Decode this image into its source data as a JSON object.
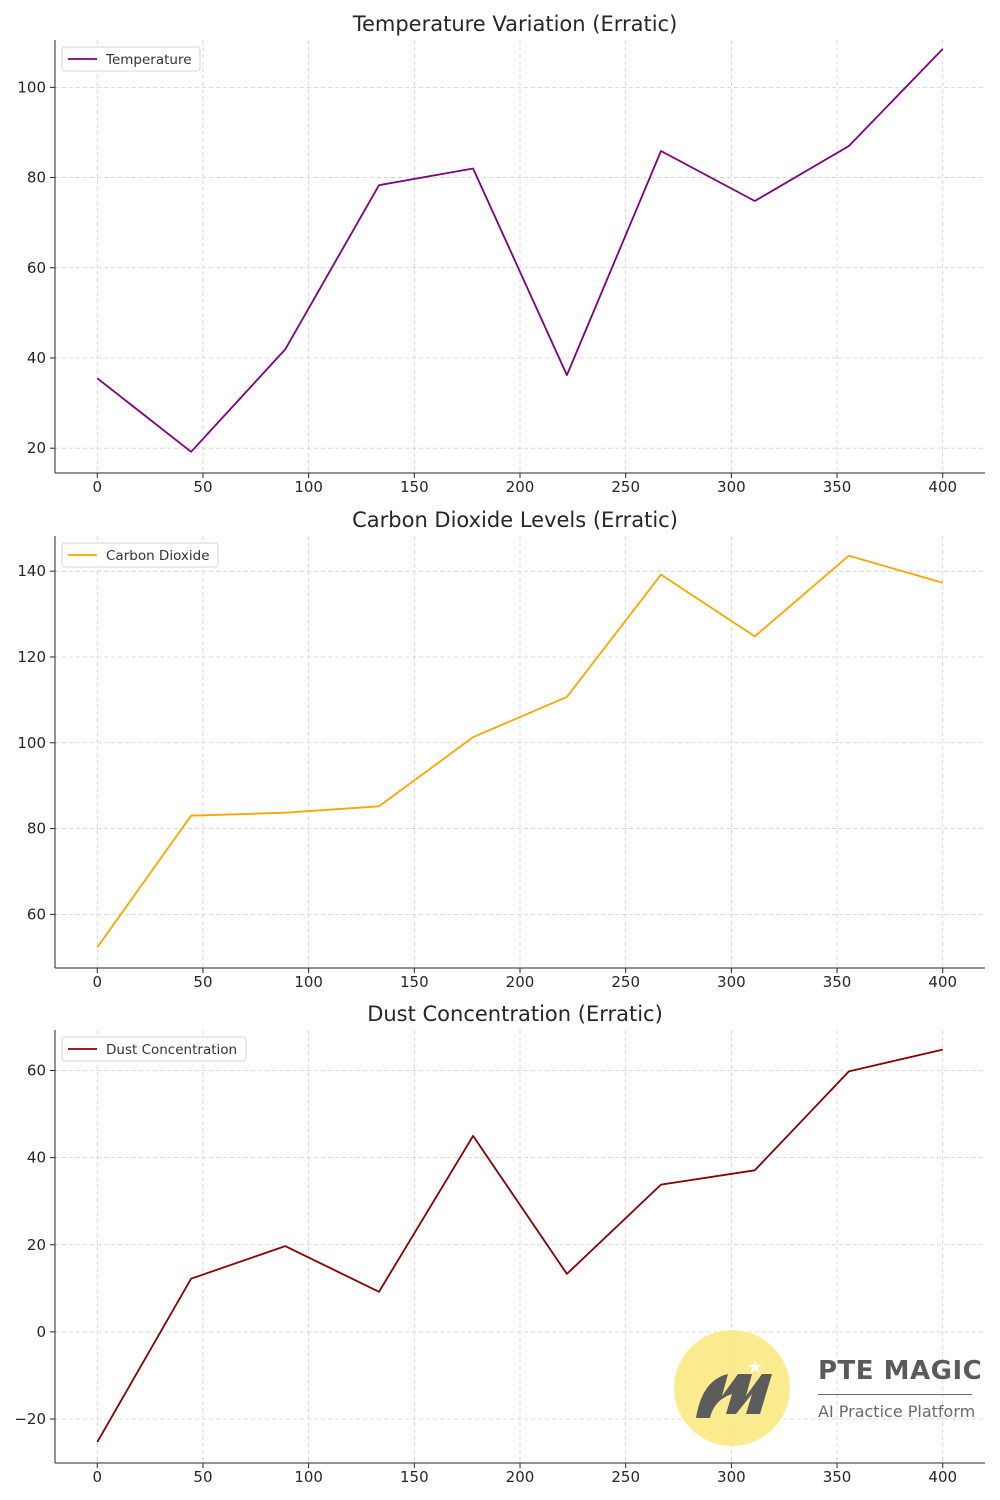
{
  "chart_data": [
    {
      "type": "line",
      "title": "Temperature Variation (Erratic)",
      "xlabel": "",
      "ylabel": "",
      "xlim": [
        -20,
        420
      ],
      "ylim": [
        14.5,
        110.5
      ],
      "xticks": [
        0,
        50,
        100,
        150,
        200,
        250,
        300,
        350,
        400
      ],
      "yticks": [
        20,
        40,
        60,
        80,
        100
      ],
      "grid": true,
      "legend_position": "upper-left",
      "series": [
        {
          "name": "Temperature",
          "color": "#800080",
          "x": [
            0,
            44.4,
            88.9,
            133.3,
            177.8,
            222.2,
            266.7,
            311.1,
            355.6,
            400
          ],
          "y": [
            35.5,
            19.2,
            41.9,
            78.3,
            82.0,
            36.2,
            85.9,
            74.8,
            87.0,
            108.5
          ]
        }
      ]
    },
    {
      "type": "line",
      "title": "Carbon Dioxide Levels (Erratic)",
      "xlabel": "",
      "ylabel": "",
      "xlim": [
        -20,
        420
      ],
      "ylim": [
        47.5,
        148.2
      ],
      "xticks": [
        0,
        50,
        100,
        150,
        200,
        250,
        300,
        350,
        400
      ],
      "yticks": [
        60,
        80,
        100,
        120,
        140
      ],
      "grid": true,
      "legend_position": "upper-left",
      "series": [
        {
          "name": "Carbon Dioxide",
          "color": "#FFA500",
          "x": [
            0,
            44.4,
            88.9,
            133.3,
            177.8,
            222.2,
            266.7,
            311.1,
            355.6,
            400
          ],
          "y": [
            52.3,
            83.0,
            83.7,
            85.2,
            101.3,
            110.7,
            139.2,
            124.8,
            143.6,
            137.3
          ]
        }
      ]
    },
    {
      "type": "line",
      "title": "Dust Concentration (Erratic)",
      "xlabel": "",
      "ylabel": "",
      "xlim": [
        -20,
        420
      ],
      "ylim": [
        -30.1,
        69.3
      ],
      "xticks": [
        0,
        50,
        100,
        150,
        200,
        250,
        300,
        350,
        400
      ],
      "yticks": [
        -20,
        0,
        20,
        40,
        60
      ],
      "grid": true,
      "legend_position": "upper-left",
      "series": [
        {
          "name": "Dust Concentration",
          "color": "#8B0000",
          "x": [
            0,
            44.4,
            88.9,
            133.3,
            177.8,
            222.2,
            266.7,
            311.1,
            355.6,
            400
          ],
          "y": [
            -25.3,
            12.2,
            19.7,
            9.2,
            45.0,
            13.3,
            33.8,
            37.1,
            59.8,
            64.8
          ]
        }
      ]
    }
  ],
  "watermark": {
    "brand": "PTE MAGIC",
    "tagline": "AI Practice Platform",
    "logo": "pte-magic-m-logo"
  }
}
